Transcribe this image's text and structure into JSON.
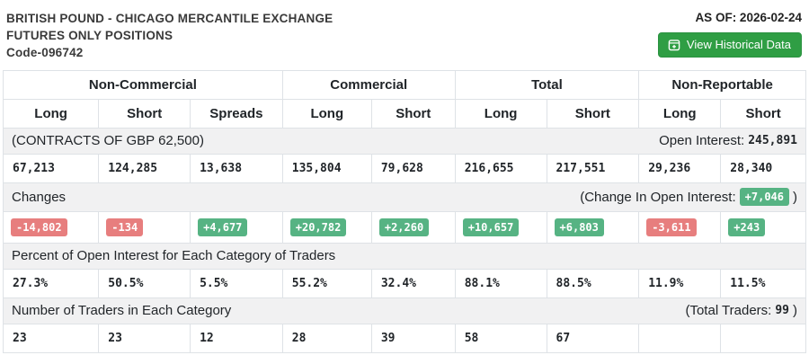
{
  "header": {
    "title_line1": "BRITISH POUND - CHICAGO MERCANTILE EXCHANGE",
    "title_line2": "FUTURES ONLY POSITIONS",
    "code": "Code-096742",
    "as_of": "AS OF: 2026-02-24",
    "button_label": "View Historical Data"
  },
  "colors": {
    "positive_badge": "#56b383",
    "negative_badge": "#e77e7e",
    "button_green": "#2f9e44",
    "band_background": "#f1f1f2",
    "border": "#dee2e6"
  },
  "table": {
    "groups": [
      {
        "label": "Non-Commercial"
      },
      {
        "label": "Commercial"
      },
      {
        "label": "Total"
      },
      {
        "label": "Non-Reportable"
      }
    ],
    "columns": [
      "Long",
      "Short",
      "Spreads",
      "Long",
      "Short",
      "Long",
      "Short",
      "Long",
      "Short"
    ],
    "contracts_label": "(CONTRACTS OF GBP 62,500)",
    "open_interest_label": "Open Interest:",
    "open_interest_value": "245,891",
    "positions": [
      "67,213",
      "124,285",
      "13,638",
      "135,804",
      "79,628",
      "216,655",
      "217,551",
      "29,236",
      "28,340"
    ],
    "changes_label": "Changes",
    "change_oi_prefix": "(Change In Open Interest:",
    "change_oi_value": "+7,046",
    "change_oi_suffix": ")",
    "changes": [
      {
        "value": "-14,802",
        "direction": "negative"
      },
      {
        "value": "-134",
        "direction": "negative"
      },
      {
        "value": "+4,677",
        "direction": "positive"
      },
      {
        "value": "+20,782",
        "direction": "positive"
      },
      {
        "value": "+2,260",
        "direction": "positive"
      },
      {
        "value": "+10,657",
        "direction": "positive"
      },
      {
        "value": "+6,803",
        "direction": "positive"
      },
      {
        "value": "-3,611",
        "direction": "negative"
      },
      {
        "value": "+243",
        "direction": "positive"
      }
    ],
    "percent_label": "Percent of Open Interest for Each Category of Traders",
    "percents": [
      "27.3%",
      "50.5%",
      "5.5%",
      "55.2%",
      "32.4%",
      "88.1%",
      "88.5%",
      "11.9%",
      "11.5%"
    ],
    "traders_label": "Number of Traders in Each Category",
    "total_traders_prefix": "(Total Traders:",
    "total_traders_value": "99",
    "total_traders_suffix": ")",
    "traders": [
      "23",
      "23",
      "12",
      "28",
      "39",
      "58",
      "67",
      "",
      ""
    ]
  }
}
